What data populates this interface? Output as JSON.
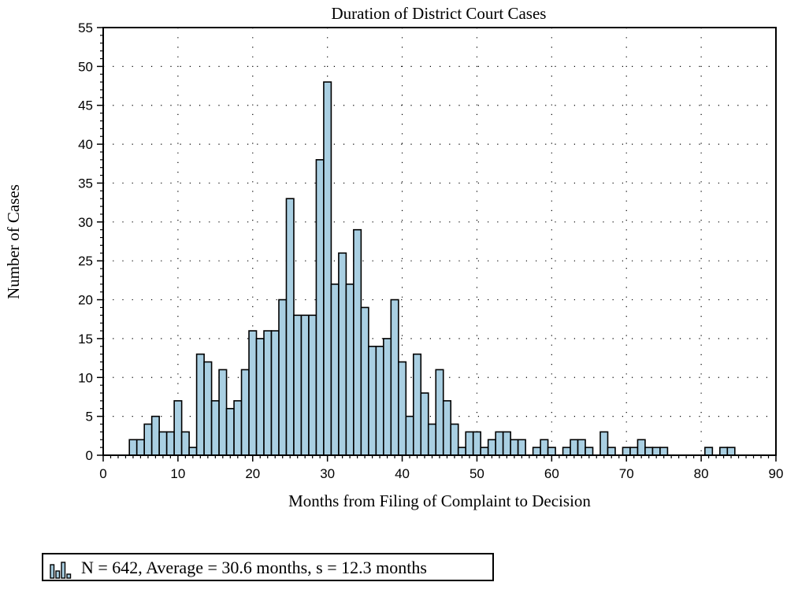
{
  "chart_data": {
    "type": "bar",
    "title": "Duration of District Court Cases",
    "xlabel": "Months from Filing of Complaint to Decision",
    "ylabel": "Number of Cases",
    "xlim": [
      0,
      90
    ],
    "ylim": [
      0,
      55
    ],
    "x_ticks": [
      0,
      10,
      20,
      30,
      40,
      50,
      60,
      70,
      80,
      90
    ],
    "y_ticks": [
      0,
      5,
      10,
      15,
      20,
      25,
      30,
      35,
      40,
      45,
      50,
      55
    ],
    "grid": true,
    "bin_width": 1,
    "x": [
      4,
      5,
      6,
      7,
      8,
      9,
      10,
      11,
      12,
      13,
      14,
      15,
      16,
      17,
      18,
      19,
      20,
      21,
      22,
      23,
      24,
      25,
      26,
      27,
      28,
      29,
      30,
      31,
      32,
      33,
      34,
      35,
      36,
      37,
      38,
      39,
      40,
      41,
      42,
      43,
      44,
      45,
      46,
      47,
      48,
      49,
      50,
      51,
      52,
      53,
      54,
      55,
      56,
      57,
      58,
      59,
      60,
      61,
      62,
      63,
      64,
      65,
      66,
      67,
      68,
      69,
      70,
      71,
      72,
      73,
      74,
      75,
      76,
      77,
      78,
      79,
      80,
      81,
      82,
      83,
      84
    ],
    "values": [
      2,
      2,
      4,
      5,
      3,
      3,
      7,
      3,
      1,
      13,
      12,
      7,
      11,
      6,
      7,
      11,
      16,
      15,
      16,
      16,
      20,
      33,
      18,
      18,
      18,
      38,
      48,
      22,
      26,
      22,
      29,
      19,
      14,
      14,
      15,
      20,
      12,
      5,
      13,
      8,
      4,
      11,
      7,
      4,
      1,
      3,
      3,
      1,
      2,
      3,
      3,
      2,
      2,
      0,
      1,
      2,
      1,
      0,
      1,
      2,
      2,
      1,
      0,
      3,
      1,
      0,
      1,
      1,
      2,
      1,
      1,
      1,
      0,
      0,
      0,
      0,
      0,
      1,
      0,
      1,
      1
    ],
    "bar_color": "#a9cfe2",
    "legend_position": "bottom-left",
    "legend_text": "N = 642, Average = 30.6 months, s = 12.3 months"
  }
}
